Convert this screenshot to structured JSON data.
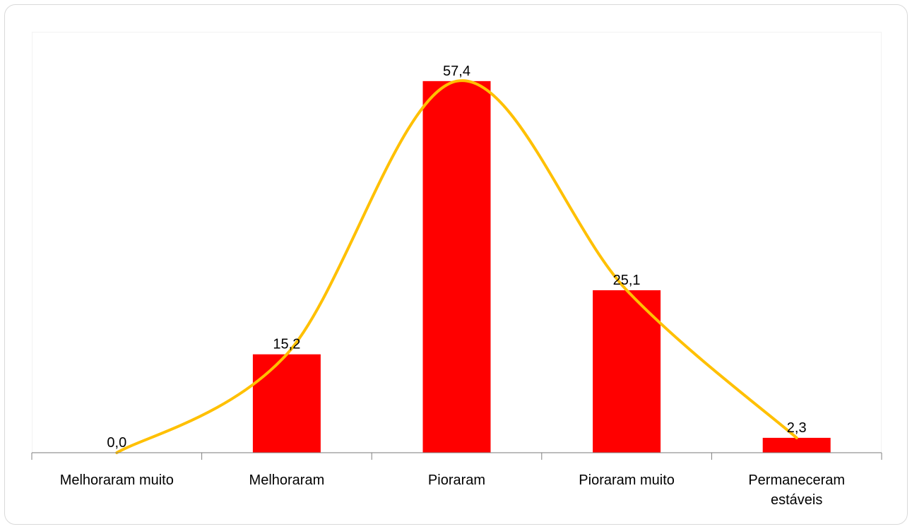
{
  "chart_data": {
    "type": "bar",
    "title": "",
    "xlabel": "",
    "ylabel": "",
    "categories": [
      [
        "Melhoraram muito"
      ],
      [
        "Melhoraram"
      ],
      [
        "Pioraram"
      ],
      [
        "Pioraram muito"
      ],
      [
        "Permaneceram",
        "estáveis"
      ]
    ],
    "series": [
      {
        "values": [
          0.0,
          15.2,
          57.4,
          25.1,
          2.3
        ],
        "color": "#ff0000"
      }
    ],
    "data_labels": [
      "0,0",
      "15,2",
      "57,4",
      "25,1",
      "2,3"
    ],
    "trend_line": {
      "type": "smooth",
      "color": "#ffc000"
    },
    "ylim": [
      0,
      60
    ],
    "grid": false,
    "legend": "none"
  }
}
